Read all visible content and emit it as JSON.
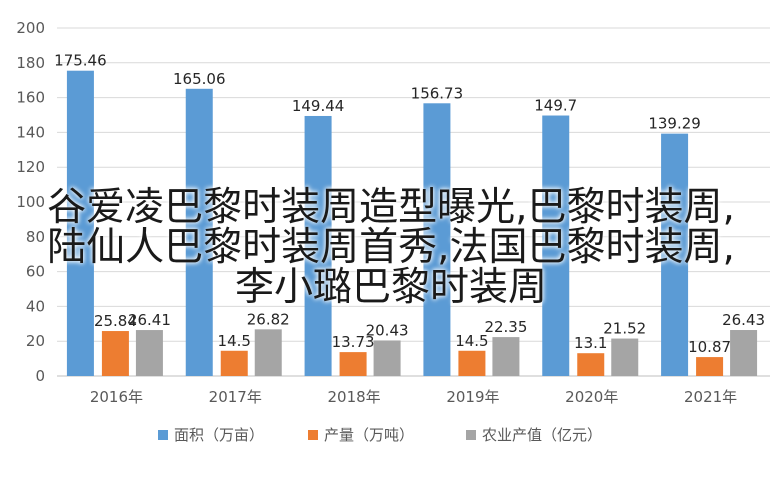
{
  "chart_data": {
    "type": "bar",
    "title": "",
    "xlabel": "",
    "ylabel": "",
    "ylim": [
      0,
      200
    ],
    "yticks": [
      0,
      20,
      40,
      60,
      80,
      100,
      120,
      140,
      160,
      180,
      200
    ],
    "grid": "horizontal",
    "legend_position": "bottom",
    "categories": [
      "2016年",
      "2017年",
      "2018年",
      "2019年",
      "2020年",
      "2021年"
    ],
    "series": [
      {
        "name": "面积（万亩）",
        "color": "#5B9BD5",
        "values": [
          175.46,
          165.06,
          149.44,
          156.73,
          149.7,
          139.29
        ],
        "labels": [
          "175.46",
          "165.06",
          "149.44",
          "156.73",
          "149.7",
          "139.29"
        ]
      },
      {
        "name": "产量（万吨）",
        "color": "#ED7D31",
        "values": [
          25.84,
          14.5,
          13.73,
          14.5,
          13.1,
          10.87
        ],
        "labels": [
          "25.84",
          "14.5",
          "13.73",
          "14.5",
          "13.1",
          "10.87"
        ]
      },
      {
        "name": "农业产值（亿元）",
        "color": "#A5A5A5",
        "values": [
          26.41,
          26.82,
          20.43,
          22.35,
          21.52,
          26.43
        ],
        "labels": [
          "26.41",
          "26.82",
          "20.43",
          "22.35",
          "21.52",
          "26.43"
        ]
      }
    ]
  },
  "overlay": {
    "lines": [
      "谷爱凌巴黎时装周造型曝光,巴黎时装周,",
      "陆仙人巴黎时装周首秀,法国巴黎时装周,",
      "李小璐巴黎时装周"
    ]
  }
}
